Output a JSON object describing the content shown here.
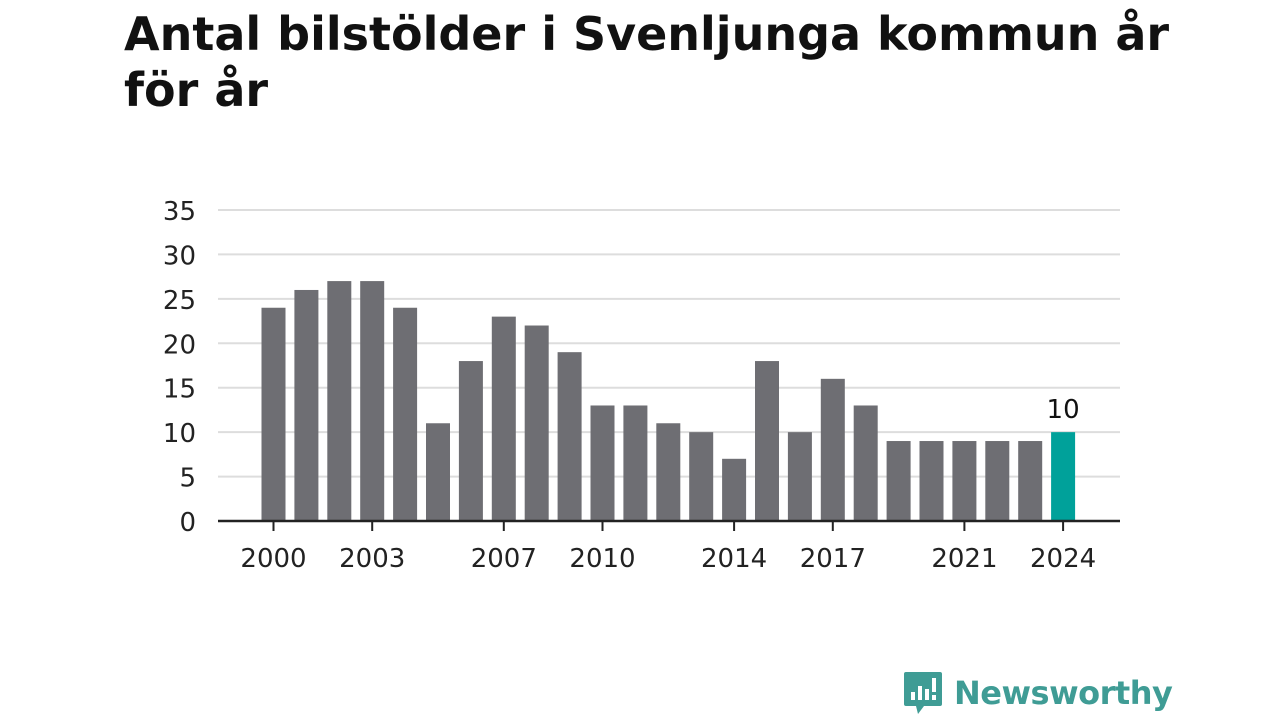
{
  "title": "Antal bilstölder i Svenljunga kommun år för år",
  "brand": {
    "name": "Newsworthy",
    "color": "#3f9c95"
  },
  "colors": {
    "bar": "#6e6e73",
    "highlight": "#00a19a",
    "grid": "#dddddd",
    "axis": "#222222"
  },
  "chart_data": {
    "type": "bar",
    "title": "Antal bilstölder i Svenljunga kommun år för år",
    "categories": [
      "2000",
      "2001",
      "2002",
      "2003",
      "2004",
      "2005",
      "2006",
      "2007",
      "2008",
      "2009",
      "2010",
      "2011",
      "2012",
      "2013",
      "2014",
      "2015",
      "2016",
      "2017",
      "2018",
      "2019",
      "2020",
      "2021",
      "2022",
      "2023",
      "2024"
    ],
    "values": [
      24,
      26,
      27,
      27,
      24,
      11,
      18,
      23,
      22,
      19,
      13,
      13,
      11,
      10,
      7,
      18,
      10,
      16,
      13,
      9,
      9,
      9,
      9,
      9,
      10
    ],
    "x_tick_labels": [
      "2000",
      "2003",
      "2007",
      "2010",
      "2014",
      "2017",
      "2021",
      "2024"
    ],
    "y_ticks": [
      0,
      5,
      10,
      15,
      20,
      25,
      30,
      35
    ],
    "ylim": [
      0,
      35
    ],
    "xlabel": "",
    "ylabel": "",
    "grid": true,
    "highlight_category": "2024",
    "data_labels": [
      {
        "category": "2024",
        "text": "10"
      }
    ]
  }
}
